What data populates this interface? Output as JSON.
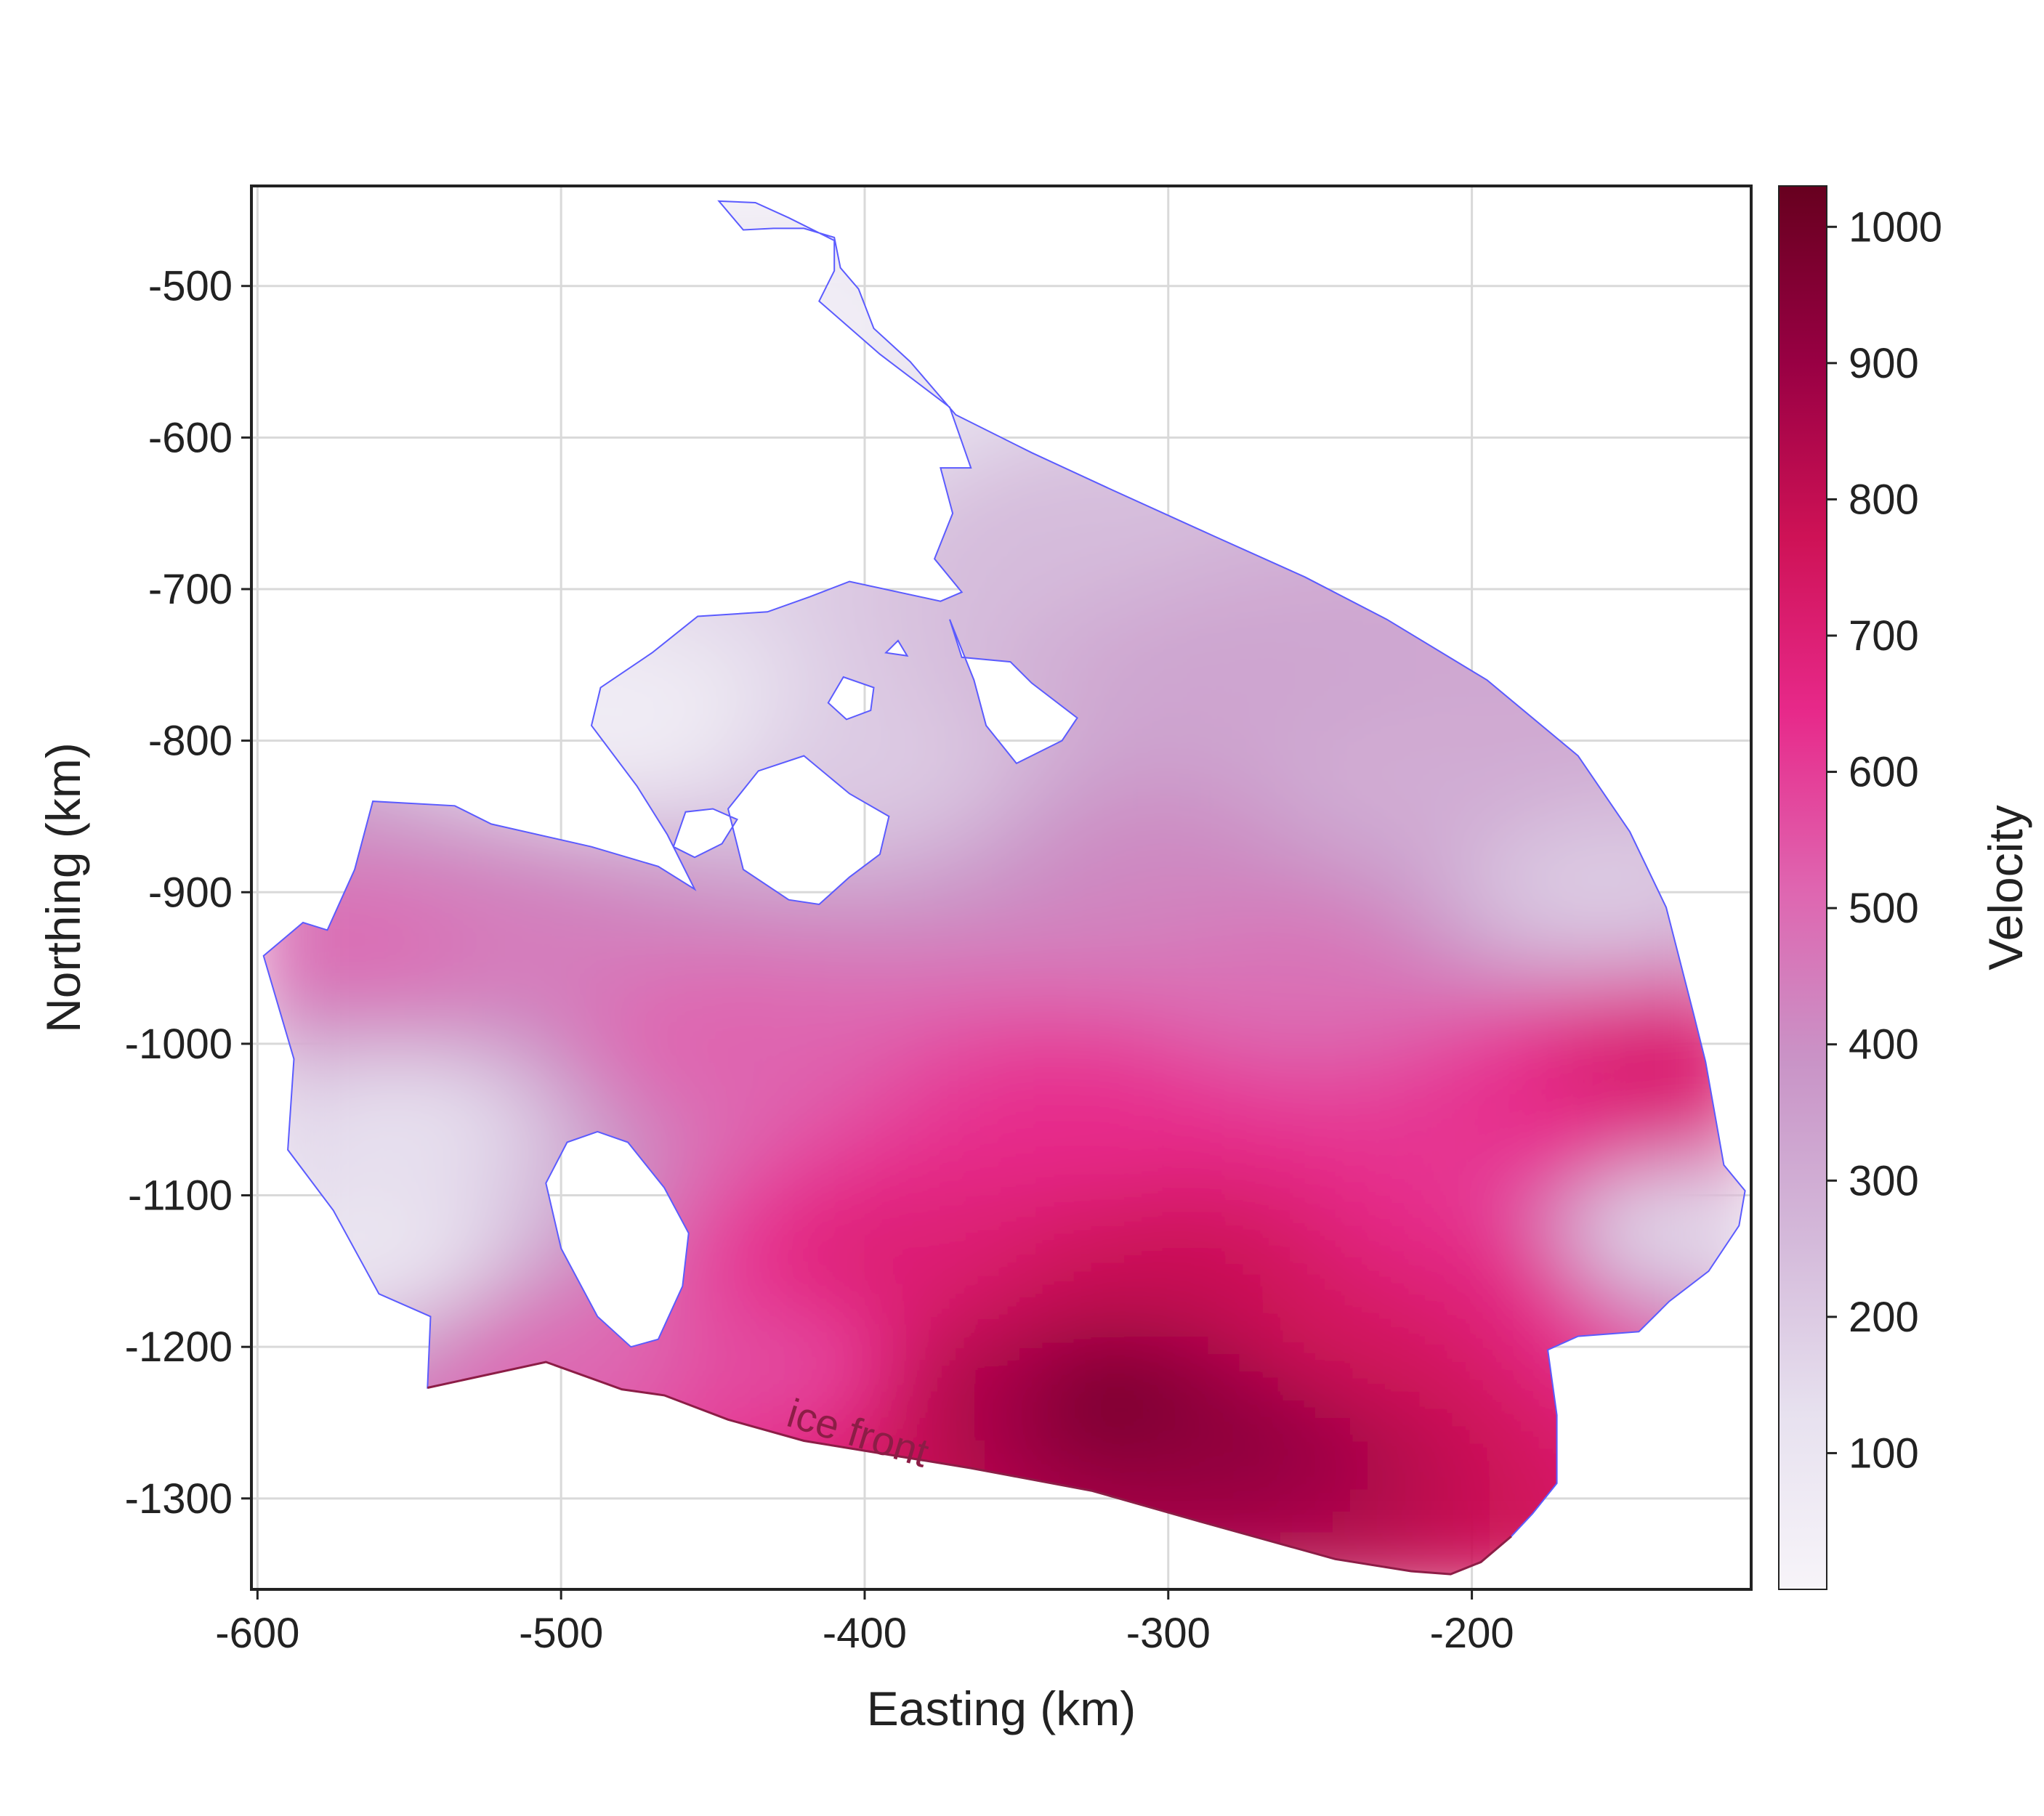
{
  "chart_data": {
    "type": "heatmap",
    "title": "",
    "xlabel": "Easting (km)",
    "ylabel": "Northing (km)",
    "xlim": [
      -602,
      -108
    ],
    "ylim": [
      -1360,
      -434
    ],
    "x_ticks": [
      -600,
      -500,
      -400,
      -300,
      -200
    ],
    "y_ticks": [
      -500,
      -600,
      -700,
      -800,
      -900,
      -1000,
      -1100,
      -1200,
      -1300
    ],
    "grid": true,
    "colorbar": {
      "label": "Velocity",
      "range": [
        0,
        1030
      ],
      "ticks": [
        100,
        200,
        300,
        400,
        500,
        600,
        700,
        800,
        900,
        1000
      ],
      "colormap": "PuRd",
      "colors": [
        "#f7f4f9",
        "#e7e1ef",
        "#d4b9da",
        "#c994c7",
        "#df65b0",
        "#e7298a",
        "#ce1256",
        "#980043",
        "#67001f"
      ]
    },
    "outline_color": "#5b5bff",
    "ice_front_color": "#8c1d46",
    "annotation": "ice front",
    "boundary": [
      [
        -544,
        -1227
      ],
      [
        -543,
        -1180
      ],
      [
        -560,
        -1165
      ],
      [
        -575,
        -1110
      ],
      [
        -590,
        -1070
      ],
      [
        -588,
        -1010
      ],
      [
        -598,
        -942
      ],
      [
        -585,
        -920
      ],
      [
        -577,
        -925
      ],
      [
        -568,
        -885
      ],
      [
        -562,
        -840
      ],
      [
        -535,
        -843
      ],
      [
        -523,
        -855
      ],
      [
        -490,
        -870
      ],
      [
        -468,
        -883
      ],
      [
        -456,
        -898
      ],
      [
        -465,
        -862
      ],
      [
        -475,
        -830
      ],
      [
        -490,
        -790
      ],
      [
        -487,
        -765
      ],
      [
        -470,
        -742
      ],
      [
        -455,
        -718
      ],
      [
        -432,
        -715
      ],
      [
        -418,
        -705
      ],
      [
        -405,
        -695
      ],
      [
        -375,
        -708
      ],
      [
        -368,
        -702
      ],
      [
        -377,
        -680
      ],
      [
        -371,
        -650
      ],
      [
        -375,
        -620
      ],
      [
        -365,
        -620
      ],
      [
        -372,
        -580
      ],
      [
        -395,
        -545
      ],
      [
        -415,
        -510
      ],
      [
        -410,
        -490
      ],
      [
        -410,
        -470
      ],
      [
        -425,
        -455
      ],
      [
        -436,
        -445
      ],
      [
        -448,
        -444
      ],
      [
        -440,
        -463
      ],
      [
        -430,
        -462
      ],
      [
        -420,
        -462
      ],
      [
        -410,
        -468
      ],
      [
        -408,
        -488
      ],
      [
        -402,
        -502
      ],
      [
        -397,
        -528
      ],
      [
        -385,
        -550
      ],
      [
        -370,
        -585
      ],
      [
        -345,
        -610
      ],
      [
        -318,
        -635
      ],
      [
        -285,
        -665
      ],
      [
        -255,
        -692
      ],
      [
        -228,
        -720
      ],
      [
        -195,
        -760
      ],
      [
        -165,
        -810
      ],
      [
        -148,
        -860
      ],
      [
        -136,
        -910
      ],
      [
        -127,
        -980
      ],
      [
        -123,
        -1012
      ],
      [
        -117,
        -1080
      ],
      [
        -110,
        -1097
      ],
      [
        -112,
        -1120
      ],
      [
        -122,
        -1150
      ],
      [
        -135,
        -1170
      ],
      [
        -145,
        -1190
      ],
      [
        -165,
        -1193
      ],
      [
        -175,
        -1202
      ],
      [
        -172,
        -1245
      ],
      [
        -172,
        -1290
      ],
      [
        -180,
        -1310
      ],
      [
        -187,
        -1325
      ],
      [
        -197,
        -1342
      ],
      [
        -207,
        -1350
      ],
      [
        -220,
        -1348
      ],
      [
        -245,
        -1340
      ],
      [
        -290,
        -1315
      ],
      [
        -325,
        -1295
      ],
      [
        -365,
        -1280
      ],
      [
        -420,
        -1262
      ],
      [
        -445,
        -1248
      ],
      [
        -466,
        -1232
      ],
      [
        -480,
        -1228
      ],
      [
        -505,
        -1210
      ],
      [
        -544,
        -1227
      ]
    ],
    "holes": [
      [
        [
          -468,
          -1195
        ],
        [
          -477,
          -1200
        ],
        [
          -488,
          -1180
        ],
        [
          -500,
          -1135
        ],
        [
          -505,
          -1092
        ],
        [
          -498,
          -1065
        ],
        [
          -488,
          -1058
        ],
        [
          -478,
          -1065
        ],
        [
          -466,
          -1095
        ],
        [
          -458,
          -1125
        ],
        [
          -460,
          -1160
        ],
        [
          -468,
          -1195
        ]
      ],
      [
        [
          -420,
          -810
        ],
        [
          -435,
          -820
        ],
        [
          -445,
          -845
        ],
        [
          -440,
          -885
        ],
        [
          -425,
          -905
        ],
        [
          -415,
          -908
        ],
        [
          -405,
          -890
        ],
        [
          -395,
          -875
        ],
        [
          -392,
          -850
        ],
        [
          -405,
          -835
        ],
        [
          -420,
          -810
        ]
      ],
      [
        [
          -372,
          -720
        ],
        [
          -368,
          -745
        ],
        [
          -352,
          -748
        ],
        [
          -345,
          -762
        ],
        [
          -330,
          -785
        ],
        [
          -335,
          -800
        ],
        [
          -350,
          -815
        ],
        [
          -360,
          -790
        ],
        [
          -364,
          -760
        ],
        [
          -372,
          -720
        ]
      ],
      [
        [
          -459,
          -847
        ],
        [
          -463,
          -870
        ],
        [
          -456,
          -877
        ],
        [
          -447,
          -868
        ],
        [
          -442,
          -852
        ],
        [
          -450,
          -845
        ],
        [
          -459,
          -847
        ]
      ],
      [
        [
          -407,
          -758
        ],
        [
          -412,
          -775
        ],
        [
          -406,
          -786
        ],
        [
          -398,
          -780
        ],
        [
          -397,
          -765
        ],
        [
          -407,
          -758
        ]
      ],
      [
        [
          -389,
          -734
        ],
        [
          -393,
          -742
        ],
        [
          -386,
          -744
        ],
        [
          -389,
          -734
        ]
      ]
    ],
    "ice_front": [
      [
        -544,
        -1227
      ],
      [
        -505,
        -1210
      ],
      [
        -480,
        -1228
      ],
      [
        -466,
        -1232
      ],
      [
        -445,
        -1248
      ],
      [
        -420,
        -1262
      ],
      [
        -365,
        -1280
      ],
      [
        -325,
        -1295
      ],
      [
        -290,
        -1315
      ],
      [
        -245,
        -1340
      ],
      [
        -220,
        -1348
      ],
      [
        -207,
        -1350
      ],
      [
        -197,
        -1342
      ],
      [
        -187,
        -1325
      ]
    ],
    "velocity_field_anchors": [
      {
        "x": -320,
        "y": -1230,
        "v": 1010
      },
      {
        "x": -280,
        "y": -1250,
        "v": 930
      },
      {
        "x": -360,
        "y": -1220,
        "v": 860
      },
      {
        "x": -300,
        "y": -1150,
        "v": 790
      },
      {
        "x": -240,
        "y": -1200,
        "v": 760
      },
      {
        "x": -390,
        "y": -1150,
        "v": 700
      },
      {
        "x": -200,
        "y": -1150,
        "v": 680
      },
      {
        "x": -140,
        "y": -1020,
        "v": 740
      },
      {
        "x": -180,
        "y": -1070,
        "v": 640
      },
      {
        "x": -330,
        "y": -1050,
        "v": 640
      },
      {
        "x": -420,
        "y": -1210,
        "v": 560
      },
      {
        "x": -500,
        "y": -1200,
        "v": 500
      },
      {
        "x": -450,
        "y": -1000,
        "v": 520
      },
      {
        "x": -560,
        "y": -940,
        "v": 500
      },
      {
        "x": -520,
        "y": -930,
        "v": 450
      },
      {
        "x": -260,
        "y": -950,
        "v": 480
      },
      {
        "x": -300,
        "y": -880,
        "v": 420
      },
      {
        "x": -280,
        "y": -760,
        "v": 330
      },
      {
        "x": -350,
        "y": -650,
        "v": 250
      },
      {
        "x": -230,
        "y": -830,
        "v": 300
      },
      {
        "x": -160,
        "y": -900,
        "v": 190
      },
      {
        "x": -400,
        "y": -820,
        "v": 200
      },
      {
        "x": -550,
        "y": -1050,
        "v": 120
      },
      {
        "x": -560,
        "y": -1140,
        "v": 80
      },
      {
        "x": -140,
        "y": -1120,
        "v": 110
      },
      {
        "x": -480,
        "y": -790,
        "v": 40
      },
      {
        "x": -430,
        "y": -550,
        "v": 30
      },
      {
        "x": -400,
        "y": -600,
        "v": 120
      }
    ]
  }
}
